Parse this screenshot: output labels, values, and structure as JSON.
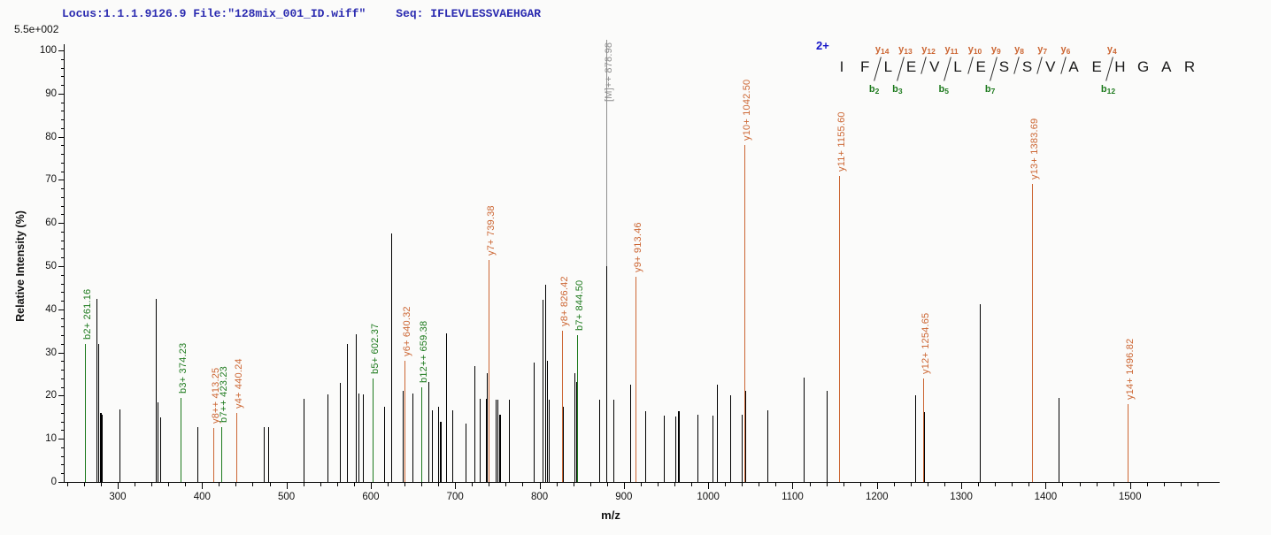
{
  "header": {
    "locus_file_label": "Locus:1.1.1.9126.9 File:\"128mix_001_ID.wiff\"",
    "seq_label": "Seq: IFLEVLESSVAEHGAR",
    "intensity_scale_label": "5.5e+002"
  },
  "colors": {
    "header_blue": "#2b2bb0",
    "charge_blue": "#1616c8",
    "y_ion_orange": "#cc6633",
    "b_ion_green": "#1d7a1d",
    "precursor_gray": "#8f8f8f",
    "peak_black": "#000000"
  },
  "chart_data": {
    "type": "bar",
    "subtype": "ms2-stick-spectrum",
    "title": "",
    "xlabel": "m/z",
    "ylabel": "Relative Intensity (%)",
    "xlim": [
      236,
      1600
    ],
    "ylim": [
      0,
      100
    ],
    "x_major_ticks": [
      300,
      400,
      500,
      600,
      700,
      800,
      900,
      1000,
      1100,
      1200,
      1300,
      1400,
      1500
    ],
    "x_minor_step": 20,
    "y_major_step": 10,
    "y_minor_step": 2,
    "grid": false,
    "precursor": {
      "label": "[M]++ 878.98",
      "mz": 878.98,
      "line_to_intensity": 100
    },
    "annotated_peaks": [
      {
        "label": "b2+ 261.16",
        "mz": 261.16,
        "intensity": 32,
        "series": "b"
      },
      {
        "label": "b3+ 374.23",
        "mz": 374.23,
        "intensity": 19.5,
        "series": "b"
      },
      {
        "label": "y8++ 413.25",
        "mz": 413.25,
        "intensity": 12.5,
        "series": "y"
      },
      {
        "label": "b7++ 423.23",
        "mz": 423.23,
        "intensity": 12.7,
        "series": "b"
      },
      {
        "label": "y4+ 440.24",
        "mz": 440.24,
        "intensity": 16,
        "series": "y"
      },
      {
        "label": "b5+ 602.37",
        "mz": 602.37,
        "intensity": 24,
        "series": "b"
      },
      {
        "label": "y6+ 640.32",
        "mz": 640.32,
        "intensity": 28,
        "series": "y"
      },
      {
        "label": "b12++ 659.38",
        "mz": 659.38,
        "intensity": 22,
        "series": "b"
      },
      {
        "label": "y7+ 739.38",
        "mz": 739.38,
        "intensity": 51.5,
        "series": "y"
      },
      {
        "label": "y8+ 826.42",
        "mz": 826.42,
        "intensity": 35,
        "series": "y"
      },
      {
        "label": "b7+ 844.50",
        "mz": 844.5,
        "intensity": 34,
        "series": "b"
      },
      {
        "label": "y9+ 913.46",
        "mz": 913.46,
        "intensity": 47.5,
        "series": "y"
      },
      {
        "label": "y10+ 1042.50",
        "mz": 1042.5,
        "intensity": 78,
        "series": "y"
      },
      {
        "label": "y11+ 1155.60",
        "mz": 1155.6,
        "intensity": 71,
        "series": "y"
      },
      {
        "label": "y12+ 1254.65",
        "mz": 1254.65,
        "intensity": 24,
        "series": "y"
      },
      {
        "label": "y13+ 1383.69",
        "mz": 1383.69,
        "intensity": 69,
        "series": "y"
      },
      {
        "label": "y14+ 1496.82",
        "mz": 1496.82,
        "intensity": 18,
        "series": "y"
      }
    ],
    "unannotated_peaks": [
      [
        274.5,
        42.5,
        1
      ],
      [
        276.5,
        32,
        1
      ],
      [
        278.5,
        16,
        2
      ],
      [
        280.5,
        15.5,
        2
      ],
      [
        302,
        16.8,
        1
      ],
      [
        345,
        42.5,
        1
      ],
      [
        347.5,
        18.5,
        1
      ],
      [
        350,
        15,
        1
      ],
      [
        394,
        12.7,
        1
      ],
      [
        473,
        12.7,
        1
      ],
      [
        478,
        12.7,
        1
      ],
      [
        520,
        19.2,
        1
      ],
      [
        549,
        20.3,
        1
      ],
      [
        563,
        23,
        1
      ],
      [
        572,
        32,
        1
      ],
      [
        582,
        34.3,
        1
      ],
      [
        585,
        20.4,
        1
      ],
      [
        591,
        20.3,
        1
      ],
      [
        616,
        17.4,
        1
      ],
      [
        624,
        57.5,
        1
      ],
      [
        638,
        21.2,
        1
      ],
      [
        649,
        20.5,
        1
      ],
      [
        668,
        23.1,
        1
      ],
      [
        673,
        16.6,
        1
      ],
      [
        680,
        17.5,
        1
      ],
      [
        682,
        14,
        2
      ],
      [
        689,
        34.5,
        1
      ],
      [
        697,
        16.5,
        1
      ],
      [
        712,
        13.5,
        1
      ],
      [
        723,
        26.8,
        1
      ],
      [
        729,
        19.2,
        1
      ],
      [
        736,
        19.3,
        2
      ],
      [
        738,
        25.3,
        1
      ],
      [
        748,
        19,
        1
      ],
      [
        750,
        19,
        1
      ],
      [
        752.5,
        15.5,
        2
      ],
      [
        764,
        19.1,
        1
      ],
      [
        793,
        27.7,
        1
      ],
      [
        804,
        42.3,
        1
      ],
      [
        807,
        45.7,
        1
      ],
      [
        809,
        28,
        1
      ],
      [
        811,
        19,
        1
      ],
      [
        828,
        17.4,
        1
      ],
      [
        841,
        25.3,
        1
      ],
      [
        843,
        23.2,
        2
      ],
      [
        871,
        19.1,
        1
      ],
      [
        878.98,
        50,
        1
      ],
      [
        888,
        19.1,
        1
      ],
      [
        908,
        22.5,
        1
      ],
      [
        925,
        16.4,
        1
      ],
      [
        947,
        15.4,
        1
      ],
      [
        961,
        15.2,
        1
      ],
      [
        964,
        16.4,
        2
      ],
      [
        987,
        15.6,
        1
      ],
      [
        1005,
        15.4,
        1
      ],
      [
        1010,
        22.5,
        1
      ],
      [
        1026,
        20.1,
        1
      ],
      [
        1040,
        15.6,
        1
      ],
      [
        1043.5,
        21.1,
        1
      ],
      [
        1070,
        16.6,
        1
      ],
      [
        1113,
        24.2,
        1
      ],
      [
        1140,
        21.2,
        1
      ],
      [
        1245,
        20,
        1
      ],
      [
        1256,
        16.2,
        1
      ],
      [
        1322,
        41.2,
        1
      ],
      [
        1415,
        19.5,
        1
      ]
    ]
  },
  "sequence_panel": {
    "charge_label": "2+",
    "residues": [
      "I",
      "F",
      "L",
      "E",
      "V",
      "L",
      "E",
      "S",
      "S",
      "V",
      "A",
      "E",
      "H",
      "G",
      "A",
      "R"
    ],
    "y_markers": [
      {
        "ion": "y",
        "num": "14",
        "after": 2
      },
      {
        "ion": "y",
        "num": "13",
        "after": 3
      },
      {
        "ion": "y",
        "num": "12",
        "after": 4
      },
      {
        "ion": "y",
        "num": "11",
        "after": 5
      },
      {
        "ion": "y",
        "num": "10",
        "after": 6
      },
      {
        "ion": "y",
        "num": "9",
        "after": 7
      },
      {
        "ion": "y",
        "num": "8",
        "after": 8
      },
      {
        "ion": "y",
        "num": "7",
        "after": 9
      },
      {
        "ion": "y",
        "num": "6",
        "after": 10
      },
      {
        "ion": "y",
        "num": "4",
        "after": 12
      }
    ],
    "b_markers": [
      {
        "ion": "b",
        "num": "2",
        "after": 2
      },
      {
        "ion": "b",
        "num": "3",
        "after": 3
      },
      {
        "ion": "b",
        "num": "5",
        "after": 5
      },
      {
        "ion": "b",
        "num": "7",
        "after": 7
      },
      {
        "ion": "b",
        "num": "12",
        "after": 12
      }
    ]
  }
}
